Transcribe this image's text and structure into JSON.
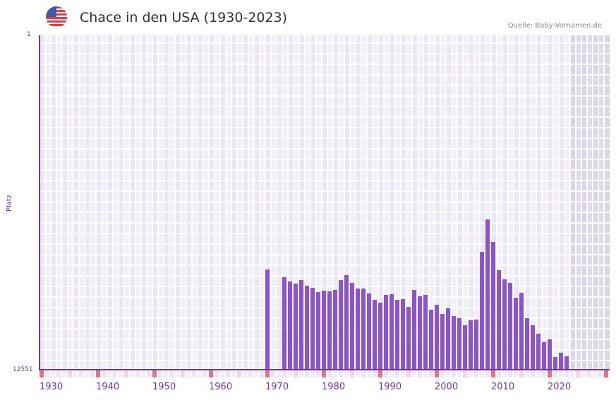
{
  "header": {
    "title": "Chace in den USA (1930-2023)",
    "source": "Quelle: Baby-Vornamen.de",
    "flag_icon": "us-flag-icon"
  },
  "axes": {
    "y_title": "Platz",
    "y_top_label": "1",
    "y_bottom_label": "12551",
    "x_labels": [
      "1930",
      "1940",
      "1950",
      "1960",
      "1970",
      "1980",
      "1990",
      "2000",
      "2010",
      "2020"
    ]
  },
  "colors": {
    "bar": "#8c54c7",
    "axis": "#6a3aa2",
    "decade_marker": "#e5747c",
    "half_decade_marker": "#f5d6df",
    "plot_bg": "#f2eefb"
  },
  "chart_data": {
    "type": "bar",
    "title": "Chace in den USA (1930-2023)",
    "xlabel": "",
    "ylabel": "Platz",
    "ylim": [
      12551,
      1
    ],
    "y_inverted": true,
    "x_range": [
      1930,
      2030
    ],
    "grid": true,
    "x": [
      1970,
      1973,
      1974,
      1975,
      1976,
      1977,
      1978,
      1979,
      1980,
      1981,
      1982,
      1983,
      1984,
      1985,
      1986,
      1987,
      1988,
      1989,
      1990,
      1991,
      1992,
      1993,
      1994,
      1995,
      1996,
      1997,
      1998,
      1999,
      2000,
      2001,
      2002,
      2003,
      2004,
      2005,
      2006,
      2007,
      2008,
      2009,
      2010,
      2011,
      2012,
      2013,
      2014,
      2015,
      2016,
      2017,
      2018,
      2019,
      2020,
      2021,
      2022,
      2023
    ],
    "values": [
      8792,
      9083,
      9242,
      9321,
      9189,
      9401,
      9480,
      9639,
      9586,
      9612,
      9560,
      9189,
      9003,
      9295,
      9507,
      9507,
      9692,
      9930,
      10036,
      9745,
      9719,
      9930,
      9904,
      10195,
      9560,
      9798,
      9745,
      10301,
      10115,
      10460,
      10248,
      10539,
      10618,
      10883,
      10698,
      10671,
      8130,
      6912,
      7760,
      8819,
      9163,
      9295,
      9851,
      9666,
      10618,
      10883,
      11201,
      11519,
      11413,
      12075,
      11916,
      12049
    ]
  }
}
